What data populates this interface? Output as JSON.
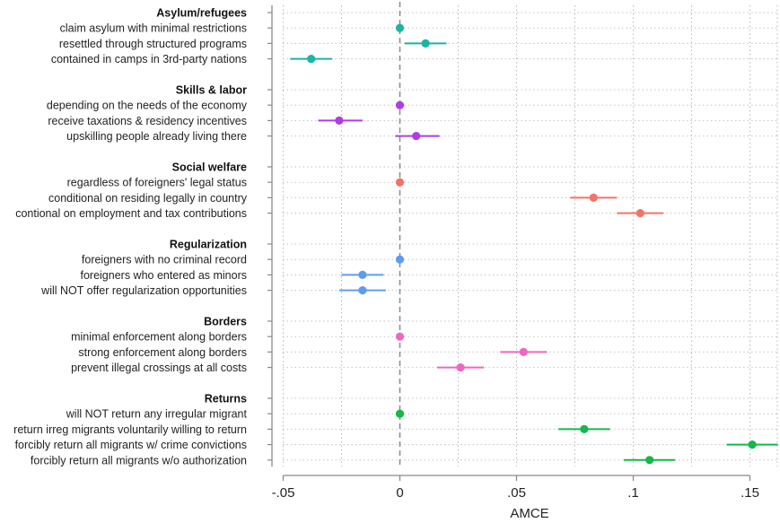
{
  "chart_data": {
    "type": "scatter",
    "subtype": "coefficient-plot",
    "xlabel": "AMCE",
    "xlim": [
      -0.055,
      0.165
    ],
    "xticks": [
      -0.05,
      0,
      0.05,
      0.1,
      0.15
    ],
    "xtick_labels": [
      "-.05",
      "0",
      ".05",
      ".1",
      ".15"
    ],
    "reference_line": 0,
    "grid": "dotted",
    "groups": [
      {
        "name": "Asylum/refugees",
        "color": "#1bb5a4",
        "items": [
          {
            "label": "claim asylum with minimal restrictions",
            "estimate": 0.0,
            "ci": [
              0.0,
              0.0
            ]
          },
          {
            "label": "resettled through structured programs",
            "estimate": 0.011,
            "ci": [
              0.002,
              0.02
            ]
          },
          {
            "label": "contained in camps in 3rd-party nations",
            "estimate": -0.038,
            "ci": [
              -0.047,
              -0.029
            ]
          }
        ]
      },
      {
        "name": "Skills & labor",
        "color": "#b03ce8",
        "items": [
          {
            "label": "depending on the needs of the economy",
            "estimate": 0.0,
            "ci": [
              0.0,
              0.0
            ]
          },
          {
            "label": "receive taxations & residency incentives",
            "estimate": -0.026,
            "ci": [
              -0.035,
              -0.016
            ]
          },
          {
            "label": "upskilling people already living there",
            "estimate": 0.007,
            "ci": [
              -0.002,
              0.017
            ]
          }
        ]
      },
      {
        "name": "Social welfare",
        "color": "#f07468",
        "items": [
          {
            "label": "regardless of foreigners' legal status",
            "estimate": 0.0,
            "ci": [
              0.0,
              0.0
            ]
          },
          {
            "label": "conditional on residing legally in country",
            "estimate": 0.083,
            "ci": [
              0.073,
              0.093
            ]
          },
          {
            "label": "contional on employment and tax contributions",
            "estimate": 0.103,
            "ci": [
              0.093,
              0.113
            ]
          }
        ]
      },
      {
        "name": "Regularization",
        "color": "#5f9cf0",
        "items": [
          {
            "label": "foreigners with no criminal record",
            "estimate": 0.0,
            "ci": [
              0.0,
              0.0
            ]
          },
          {
            "label": "foreigners who entered as minors",
            "estimate": -0.016,
            "ci": [
              -0.025,
              -0.007
            ]
          },
          {
            "label": "will NOT offer regularization opportunities",
            "estimate": -0.016,
            "ci": [
              -0.026,
              -0.006
            ]
          }
        ]
      },
      {
        "name": "Borders",
        "color": "#f066c4",
        "items": [
          {
            "label": "minimal enforcement along borders",
            "estimate": 0.0,
            "ci": [
              0.0,
              0.0
            ]
          },
          {
            "label": "strong enforcement along borders",
            "estimate": 0.053,
            "ci": [
              0.043,
              0.063
            ]
          },
          {
            "label": "prevent illegal crossings at all costs",
            "estimate": 0.026,
            "ci": [
              0.016,
              0.036
            ]
          }
        ]
      },
      {
        "name": "Returns",
        "color": "#15b84a",
        "items": [
          {
            "label": "will NOT return any irregular migrant",
            "estimate": 0.0,
            "ci": [
              0.0,
              0.0
            ]
          },
          {
            "label": "return irreg migrants voluntarily willing to return",
            "estimate": 0.079,
            "ci": [
              0.068,
              0.09
            ]
          },
          {
            "label": "forcibly return all migrants w/ crime convictions",
            "estimate": 0.151,
            "ci": [
              0.14,
              0.162
            ]
          },
          {
            "label": "forcibly return all migrants w/o authorization",
            "estimate": 0.107,
            "ci": [
              0.096,
              0.118
            ]
          }
        ]
      }
    ]
  }
}
